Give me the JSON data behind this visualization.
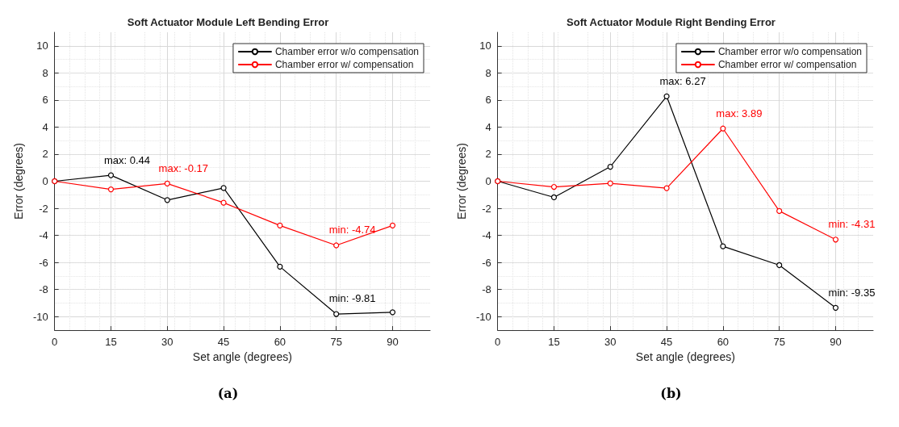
{
  "chart_data": [
    {
      "type": "line",
      "title": "Soft Actuator Module Left Bending Error",
      "xlabel": "Set angle (degrees)",
      "ylabel": "Error (degrees)",
      "x": [
        0,
        15,
        30,
        45,
        60,
        75,
        90
      ],
      "xlim": [
        0,
        100
      ],
      "xticks": [
        0,
        15,
        30,
        45,
        60,
        75,
        90
      ],
      "ylim": [
        -11,
        11
      ],
      "yticks": [
        -10,
        -8,
        -6,
        -4,
        -2,
        0,
        2,
        4,
        6,
        8,
        10
      ],
      "grid": true,
      "legend": "top right",
      "marker": "circle",
      "line_style": "solid",
      "series": [
        {
          "name": "Chamber error w/o compensation",
          "color": "#000000",
          "values": [
            0,
            0.44,
            -1.39,
            -0.5,
            -6.31,
            -9.81,
            -9.68
          ]
        },
        {
          "name": "Chamber error w/ compensation",
          "color": "#ff0000",
          "values": [
            0,
            -0.6,
            -0.17,
            -1.59,
            -3.27,
            -4.74,
            -3.27
          ]
        }
      ],
      "annotations": [
        {
          "text": "max: 0.44",
          "x": 15,
          "y": 0.44
        },
        {
          "text": "max: -0.17",
          "x": 30,
          "y": -0.17
        },
        {
          "text": "min: -4.74",
          "x": 75,
          "y": -4.74
        },
        {
          "text": "min: -9.81",
          "x": 75,
          "y": -9.81
        },
        "(a)"
      ]
    },
    {
      "type": "line",
      "title": "Soft Actuator Module Right Bending Error",
      "xlabel": "Set angle (degrees)",
      "ylabel": "Error (degrees)",
      "x": [
        0,
        15,
        30,
        45,
        60,
        75,
        90
      ],
      "xlim": [
        0,
        100
      ],
      "xticks": [
        0,
        15,
        30,
        45,
        60,
        75,
        90
      ],
      "ylim": [
        -11,
        11
      ],
      "yticks": [
        -10,
        -8,
        -6,
        -4,
        -2,
        0,
        2,
        4,
        6,
        8,
        10
      ],
      "grid": true,
      "legend": "top right",
      "marker": "circle",
      "line_style": "solid",
      "series": [
        {
          "name": "Chamber error w/o compensation",
          "color": "#000000",
          "values": [
            0,
            -1.19,
            1.07,
            6.27,
            -4.81,
            -6.2,
            -9.35
          ]
        },
        {
          "name": "Chamber error w/ compensation",
          "color": "#ff0000",
          "values": [
            0,
            -0.42,
            -0.16,
            -0.51,
            3.89,
            -2.2,
            -4.31
          ]
        }
      ],
      "annotations": [
        {
          "text": "max: 6.27",
          "x": 45,
          "y": 6.27
        },
        {
          "text": "max: 3.89",
          "x": 60,
          "y": 3.89
        },
        {
          "text": "min: -4.31",
          "x": 90,
          "y": -4.31
        },
        {
          "text": "min: -9.35",
          "x": 90,
          "y": -9.35
        },
        "(b)"
      ]
    }
  ]
}
